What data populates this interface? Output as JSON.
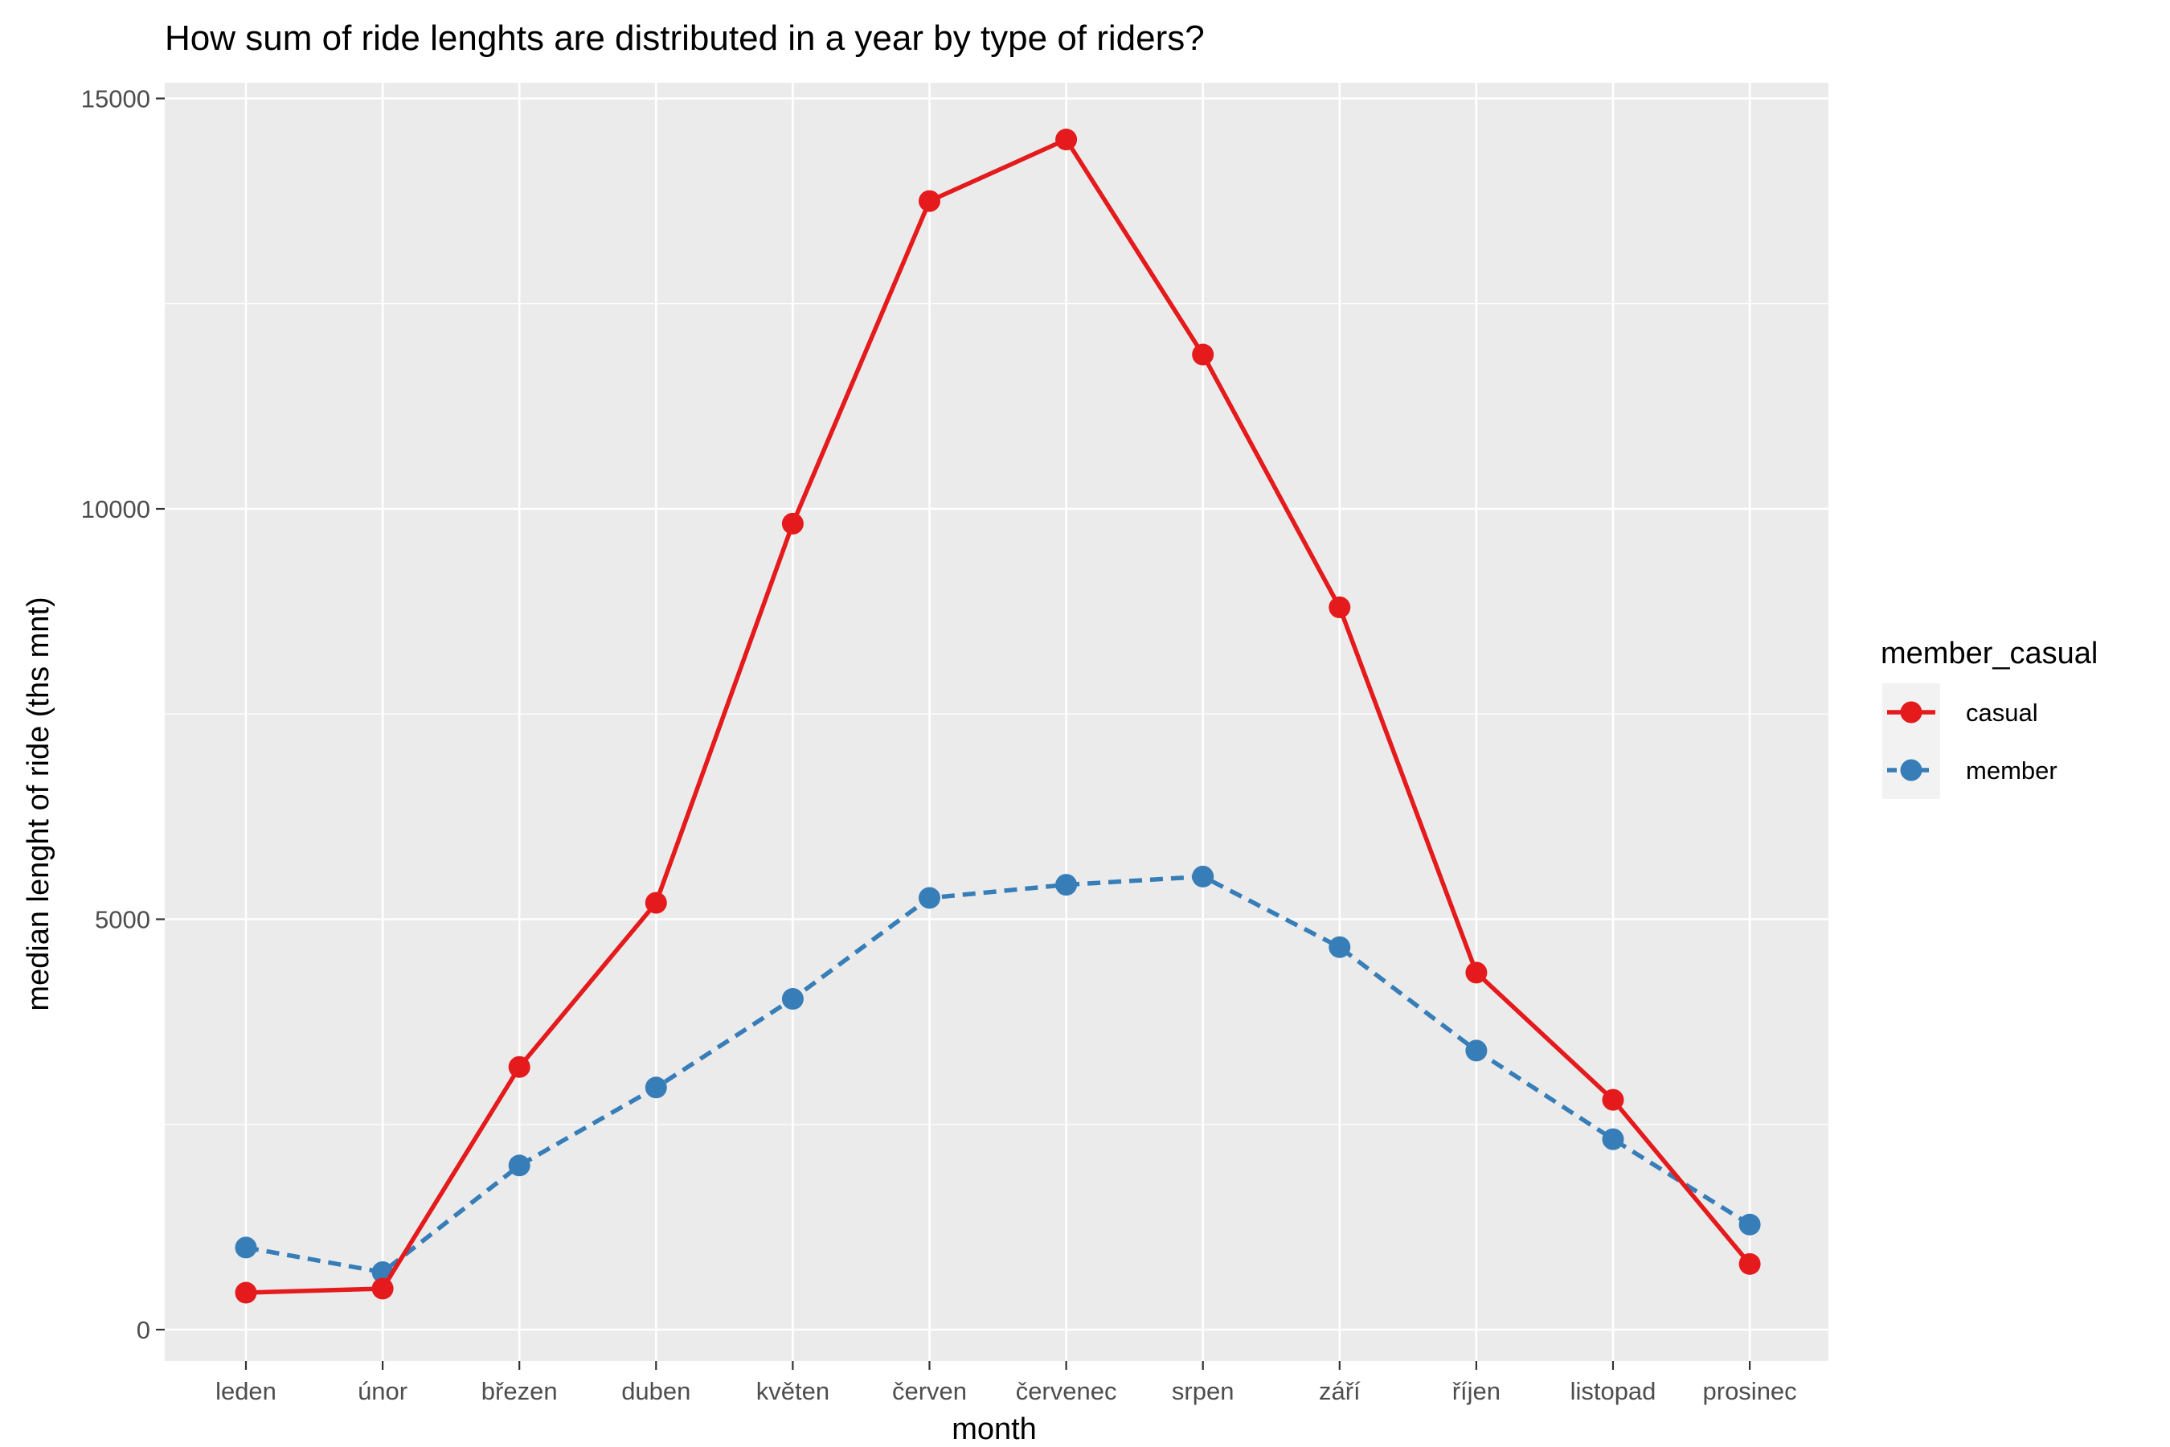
{
  "chart_data": {
    "type": "line",
    "title": "How sum of ride lenghts are distributed in a year by type of riders?",
    "xlabel": "month",
    "ylabel": "median lenght of ride (ths mnt)",
    "categories": [
      "leden",
      "únor",
      "březen",
      "duben",
      "květen",
      "červen",
      "červenec",
      "srpen",
      "září",
      "říjen",
      "listopad",
      "prosinec"
    ],
    "ylim": [
      0,
      15000
    ],
    "y_ticks": [
      {
        "value": 0,
        "label": "0"
      },
      {
        "value": 5000,
        "label": "5000"
      },
      {
        "value": 10000,
        "label": "10000"
      },
      {
        "value": 15000,
        "label": "15000"
      }
    ],
    "grid": true,
    "legend_position": "right",
    "legend_title": "member_casual",
    "series": [
      {
        "name": "casual",
        "color": "#E41A1C",
        "line_style": "solid",
        "values": [
          450,
          500,
          3200,
          5200,
          9820,
          13750,
          14500,
          11880,
          8800,
          4350,
          2800,
          800
        ]
      },
      {
        "name": "member",
        "color": "#377EB8",
        "line_style": "dashed",
        "values": [
          1000,
          700,
          2000,
          2950,
          4030,
          5260,
          5420,
          5520,
          4660,
          3400,
          2320,
          1280
        ]
      }
    ],
    "panel_background": "#EBEBEB",
    "grid_color": "#FFFFFF"
  }
}
